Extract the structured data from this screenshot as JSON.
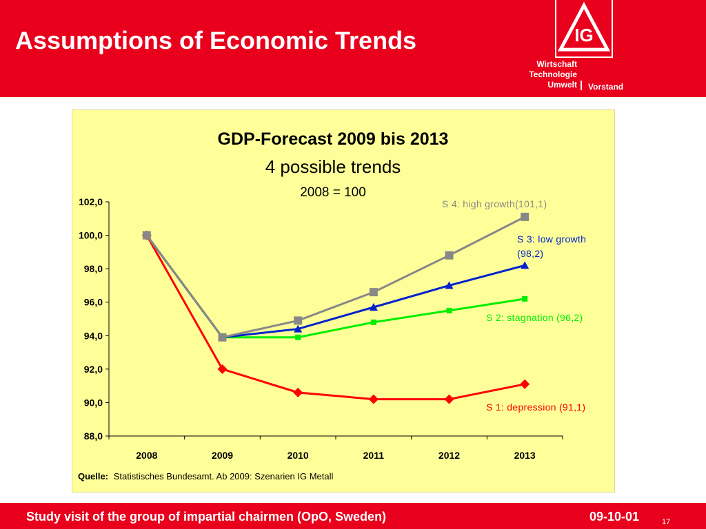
{
  "slide": {
    "title": "Assumptions of Economic Trends"
  },
  "header": {
    "dept_lines": [
      "Wirtschaft",
      "Technologie",
      "Umwelt"
    ],
    "vorstand": "Vorstand",
    "logo_letters": "IG"
  },
  "footer": {
    "text": "Study visit of the group of impartial chairmen (OpO, Sweden)",
    "date": "09-10-01",
    "page": "17"
  },
  "chart_data": {
    "type": "line",
    "title": "GDP-Forecast 2009 bis 2013",
    "subtitle": "4 possible trends",
    "subtitle2": "2008 = 100",
    "categories": [
      "2008",
      "2009",
      "2010",
      "2011",
      "2012",
      "2013"
    ],
    "ylim": [
      88,
      102
    ],
    "yticks": [
      "88,0",
      "90,0",
      "92,0",
      "94,0",
      "96,0",
      "98,0",
      "100,0",
      "102,0"
    ],
    "ytick_values": [
      88,
      90,
      92,
      94,
      96,
      98,
      100,
      102
    ],
    "grid": false,
    "series": [
      {
        "name": "S 1: depression (91,1)",
        "label_lines": [
          "S 1: depression (91,1)"
        ],
        "color": "#ff0000",
        "marker": "diamond",
        "values": [
          100.0,
          92.0,
          90.6,
          90.2,
          90.2,
          91.1
        ]
      },
      {
        "name": "S 2: stagnation (96,2)",
        "label_lines": [
          "S 2: stagnation (96,2)"
        ],
        "color": "#00ee00",
        "marker": "square",
        "values": [
          100.0,
          93.9,
          93.9,
          94.8,
          95.5,
          96.2
        ]
      },
      {
        "name": "S 3: low growth (98,2)",
        "label_lines": [
          "S 3: low growth",
          "(98,2)"
        ],
        "color": "#0022cc",
        "marker": "triangle",
        "values": [
          100.0,
          93.9,
          94.4,
          95.7,
          97.0,
          98.2
        ]
      },
      {
        "name": "S 4: high growth(101,1)",
        "label_lines": [
          "S 4: high growth(101,1)"
        ],
        "color": "#888888",
        "marker": "square",
        "values": [
          100.0,
          93.9,
          94.9,
          96.6,
          98.8,
          101.1
        ]
      }
    ],
    "source_label": "Quelle:",
    "source_text": "Statistisches Bundesamt. Ab 2009: Szenarien IG Metall"
  }
}
